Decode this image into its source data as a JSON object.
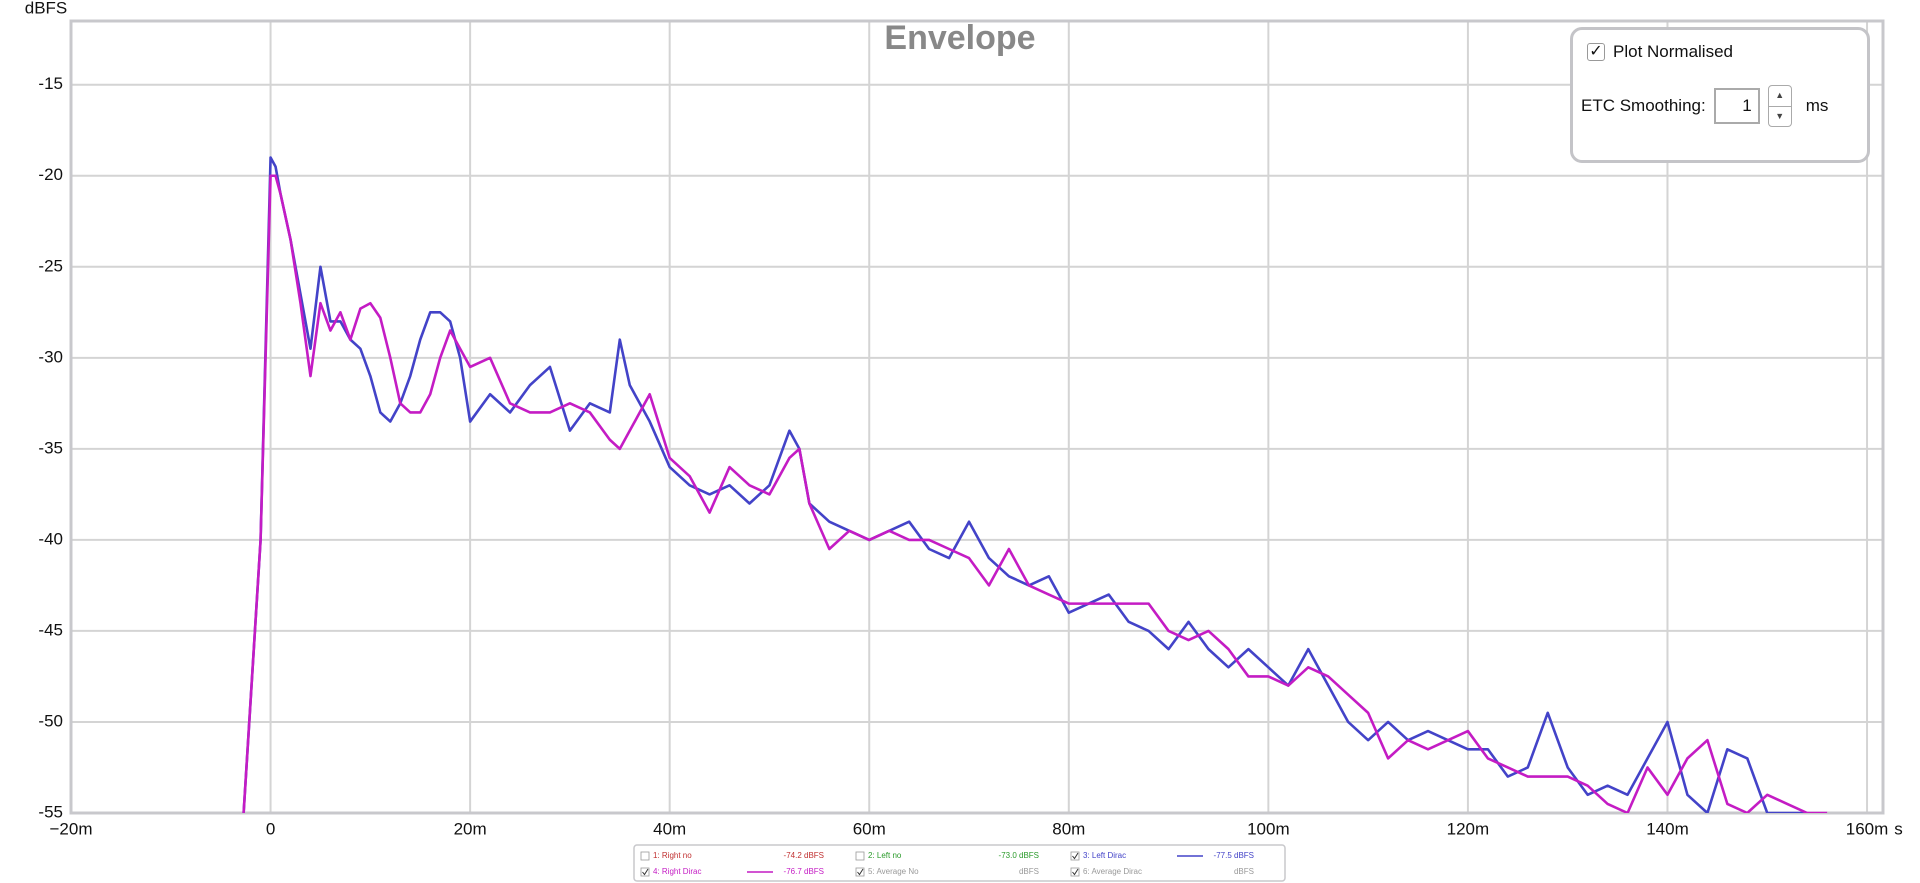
{
  "chart_data": {
    "type": "line",
    "title": "Envelope",
    "y_label": "dBFS",
    "x_label": "s",
    "x": [
      -0.0027,
      -0.001,
      0,
      0.0005,
      0.001,
      0.002,
      0.003,
      0.004,
      0.005,
      0.006,
      0.007,
      0.008,
      0.009,
      0.01,
      0.011,
      0.012,
      0.013,
      0.014,
      0.015,
      0.016,
      0.017,
      0.018,
      0.019,
      0.02,
      0.022,
      0.024,
      0.026,
      0.028,
      0.03,
      0.032,
      0.034,
      0.035,
      0.036,
      0.038,
      0.04,
      0.042,
      0.044,
      0.046,
      0.048,
      0.05,
      0.052,
      0.053,
      0.054,
      0.056,
      0.058,
      0.06,
      0.062,
      0.064,
      0.066,
      0.068,
      0.07,
      0.072,
      0.074,
      0.076,
      0.078,
      0.08,
      0.082,
      0.084,
      0.086,
      0.088,
      0.09,
      0.092,
      0.094,
      0.096,
      0.098,
      0.1,
      0.102,
      0.104,
      0.106,
      0.108,
      0.11,
      0.112,
      0.114,
      0.116,
      0.118,
      0.12,
      0.122,
      0.124,
      0.126,
      0.128,
      0.13,
      0.132,
      0.134,
      0.136,
      0.138,
      0.14,
      0.142,
      0.144,
      0.146,
      0.148,
      0.15,
      0.152,
      0.154,
      0.156
    ],
    "series": [
      {
        "name": "3: Left Dirac",
        "level": "-77.5 dBFS",
        "checked": true,
        "color": "#4343c8",
        "values": [
          -55,
          -40,
          -19,
          -19.5,
          -21,
          -23.5,
          -26.5,
          -29.5,
          -25,
          -28,
          -28,
          -29,
          -29.5,
          -31,
          -33,
          -33.5,
          -32.5,
          -31,
          -29,
          -27.5,
          -27.5,
          -28,
          -30,
          -33.5,
          -32,
          -33,
          -31.5,
          -30.5,
          -34,
          -32.5,
          -33,
          -29,
          -31.5,
          -33.5,
          -36,
          -37,
          -37.5,
          -37,
          -38,
          -37,
          -34,
          -35,
          -38,
          -39,
          -39.5,
          -40,
          -39.5,
          -39,
          -40.5,
          -41,
          -39,
          -41,
          -42,
          -42.5,
          -42,
          -44,
          -43.5,
          -43,
          -44.5,
          -45,
          -46,
          -44.5,
          -46,
          -47,
          -46,
          -47,
          -48,
          -46,
          -48,
          -50,
          -51,
          -50,
          -51,
          -50.5,
          -51,
          -51.5,
          -51.5,
          -53,
          -52.5,
          -49.5,
          -52.5,
          -54,
          -53.5,
          -54,
          -52,
          -50,
          -54,
          -55,
          -51.5,
          -52,
          -55,
          -55,
          -55,
          null
        ]
      },
      {
        "name": "4: Right Dirac",
        "level": "-76.7 dBFS",
        "checked": true,
        "color": "#c41cc4",
        "values": [
          -55,
          -40,
          -20,
          -20,
          -21,
          -23.5,
          -27,
          -31,
          -27,
          -28.5,
          -27.5,
          -29,
          -27.3,
          -27,
          -27.8,
          -30,
          -32.5,
          -33,
          -33,
          -32,
          -30,
          -28.5,
          -29.5,
          -30.5,
          -30,
          -32.5,
          -33,
          -33,
          -32.5,
          -33,
          -34.5,
          -35,
          -34,
          -32,
          -35.5,
          -36.5,
          -38.5,
          -36,
          -37,
          -37.5,
          -35.5,
          -35,
          -38,
          -40.5,
          -39.5,
          -40,
          -39.5,
          -40,
          -40,
          -40.5,
          -41,
          -42.5,
          -40.5,
          -42.5,
          -43,
          -43.5,
          -43.5,
          -43.5,
          -43.5,
          -43.5,
          -45,
          -45.5,
          -45,
          -46,
          -47.5,
          -47.5,
          -48,
          -47,
          -47.5,
          -48.5,
          -49.5,
          -52,
          -51,
          -51.5,
          -51,
          -50.5,
          -52,
          -52.5,
          -53,
          -53,
          -53,
          -53.5,
          -54.5,
          -55,
          -52.5,
          -54,
          -52,
          -51,
          -54.5,
          -55,
          -54,
          -54.5,
          -55,
          -55
        ]
      }
    ],
    "other_traces": [
      {
        "name": "1: Right no",
        "level": "-74.2 dBFS",
        "checked": false,
        "color": "#c03030"
      },
      {
        "name": "2: Left no",
        "level": "-73.0 dBFS",
        "checked": false,
        "color": "#2a9a2a"
      },
      {
        "name": "5: Average No",
        "level": "dBFS",
        "checked": true,
        "color": "#999999"
      },
      {
        "name": "6: Average Dirac",
        "level": "dBFS",
        "checked": true,
        "color": "#999999"
      }
    ],
    "xlim": [
      -0.02,
      0.1616
    ],
    "ylim": [
      -55,
      -11.5
    ],
    "xticks": [
      {
        "value": -0.02,
        "label": "−20m"
      },
      0,
      {
        "value": 0.02,
        "label": "20m"
      },
      {
        "value": 0.04,
        "label": "40m"
      },
      {
        "value": 0.06,
        "label": "60m"
      },
      {
        "value": 0.08,
        "label": "80m"
      },
      {
        "value": 0.1,
        "label": "100m"
      },
      {
        "value": 0.12,
        "label": "120m"
      },
      {
        "value": 0.14,
        "label": "140m"
      },
      {
        "value": 0.16,
        "label": "160m"
      }
    ],
    "yticks": [
      -55,
      -50,
      -45,
      -40,
      -35,
      -30,
      -25,
      -20,
      -15
    ],
    "grid": true
  },
  "controls": {
    "plot_normalised": {
      "label": "Plot Normalised",
      "checked": true
    },
    "smoothing": {
      "label": "ETC Smoothing:",
      "value": 1,
      "unit": "ms"
    }
  }
}
